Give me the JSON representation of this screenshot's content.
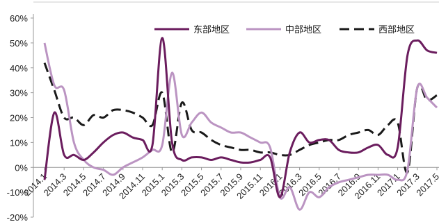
{
  "chart_data": {
    "type": "line",
    "title": "",
    "xlabel": "",
    "ylabel": "",
    "ylim": [
      -20,
      60
    ],
    "y_ticks": [
      -20,
      -10,
      0,
      10,
      20,
      30,
      40,
      50,
      60
    ],
    "y_tick_labels": [
      "-20%",
      "-10%",
      "0%",
      "10%",
      "20%",
      "30%",
      "40%",
      "50%",
      "60%"
    ],
    "x_tick_labels": [
      "2014.1",
      "2014.3",
      "2014.5",
      "2014.7",
      "2014.9",
      "2014.11",
      "2015.1",
      "2015.3",
      "2015.5",
      "2015.7",
      "2015.9",
      "2015.11",
      "2016.1",
      "2016.3",
      "2016.5",
      "2016.7",
      "2016.9",
      "2016.11",
      "2017.1",
      "2017.3",
      "2017.5"
    ],
    "x": [
      "2014.1",
      "2014.2",
      "2014.3",
      "2014.4",
      "2014.5",
      "2014.6",
      "2014.7",
      "2014.8",
      "2014.9",
      "2014.10",
      "2014.11",
      "2014.12",
      "2015.1",
      "2015.2",
      "2015.3",
      "2015.4",
      "2015.5",
      "2015.6",
      "2015.7",
      "2015.8",
      "2015.9",
      "2015.10",
      "2015.11",
      "2015.12",
      "2016.1",
      "2016.2",
      "2016.3",
      "2016.4",
      "2016.5",
      "2016.6",
      "2016.7",
      "2016.8",
      "2016.9",
      "2016.10",
      "2016.11",
      "2016.12",
      "2017.1",
      "2017.2",
      "2017.3",
      "2017.4",
      "2017.5"
    ],
    "grid": false,
    "legend_position": "top-right",
    "series": [
      {
        "name": "东部地区",
        "color": "#6b1d5e",
        "dash": "solid",
        "values": [
          -5,
          22,
          5,
          5,
          3,
          6,
          10,
          13,
          14,
          12,
          11,
          9,
          52,
          10,
          3,
          4,
          4,
          3,
          4,
          3,
          2,
          2,
          3,
          4,
          -12,
          6,
          14,
          10,
          11,
          11,
          7,
          6,
          6,
          8,
          9,
          5,
          8,
          45,
          51,
          47,
          46
        ]
      },
      {
        "name": "中部地区",
        "color": "#bb94c2",
        "dash": "solid",
        "values": [
          50,
          33,
          31,
          10,
          3,
          0,
          -1,
          -3,
          0,
          2,
          4,
          7,
          9,
          38,
          13,
          18,
          22,
          18,
          16,
          14,
          14,
          12,
          10,
          8,
          -12,
          -8,
          -17,
          -10,
          -12,
          -8,
          -6,
          -5,
          -4,
          -3,
          -3,
          -3,
          -5,
          -1,
          32,
          28,
          24
        ]
      },
      {
        "name": "西部地区",
        "color": "#1a1a1a",
        "dash": "dashed",
        "values": [
          42,
          31,
          20,
          20,
          17,
          21,
          20,
          23,
          23,
          22,
          20,
          17,
          30,
          6,
          26,
          15,
          14,
          11,
          9,
          8,
          7,
          7,
          6,
          6,
          5,
          5,
          7,
          9,
          10,
          11,
          11,
          13,
          14,
          15,
          13,
          17,
          18,
          -2,
          32,
          27,
          29
        ]
      }
    ]
  }
}
